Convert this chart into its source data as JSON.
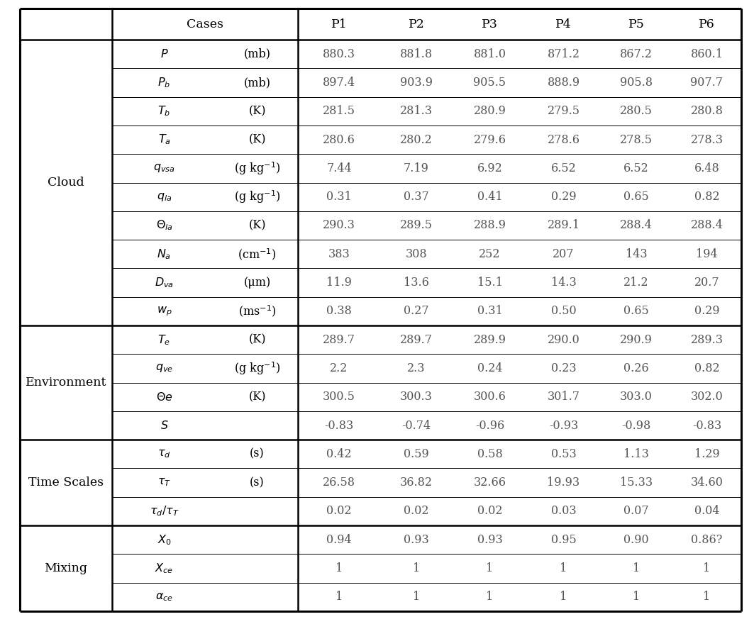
{
  "background_color": "#ffffff",
  "sections": [
    {
      "group_label": "Cloud",
      "rows": [
        {
          "param": "P",
          "param_tex": "$P$",
          "unit": "(mb)",
          "values": [
            "880.3",
            "881.8",
            "881.0",
            "871.2",
            "867.2",
            "860.1"
          ]
        },
        {
          "param": "P_b",
          "param_tex": "$P_b$",
          "unit": "(mb)",
          "values": [
            "897.4",
            "903.9",
            "905.5",
            "888.9",
            "905.8",
            "907.7"
          ]
        },
        {
          "param": "T_b",
          "param_tex": "$T_b$",
          "unit": "(K)",
          "values": [
            "281.5",
            "281.3",
            "280.9",
            "279.5",
            "280.5",
            "280.8"
          ]
        },
        {
          "param": "T_a",
          "param_tex": "$T_a$",
          "unit": "(K)",
          "values": [
            "280.6",
            "280.2",
            "279.6",
            "278.6",
            "278.5",
            "278.3"
          ]
        },
        {
          "param": "q_vsa",
          "param_tex": "$q_{vsa}$",
          "unit": "(g kg$^{-1}$)",
          "values": [
            "7.44",
            "7.19",
            "6.92",
            "6.52",
            "6.52",
            "6.48"
          ]
        },
        {
          "param": "q_la",
          "param_tex": "$q_{la}$",
          "unit": "(g kg$^{-1}$)",
          "values": [
            "0.31",
            "0.37",
            "0.41",
            "0.29",
            "0.65",
            "0.82"
          ]
        },
        {
          "param": "Theta_la",
          "param_tex": "$\\Theta_{la}$",
          "unit": "(K)",
          "values": [
            "290.3",
            "289.5",
            "288.9",
            "289.1",
            "288.4",
            "288.4"
          ]
        },
        {
          "param": "N_a",
          "param_tex": "$N_a$",
          "unit": "(cm$^{-1}$)",
          "values": [
            "383",
            "308",
            "252",
            "207",
            "143",
            "194"
          ]
        },
        {
          "param": "D_va",
          "param_tex": "$D_{va}$",
          "unit": "(μm)",
          "values": [
            "11.9",
            "13.6",
            "15.1",
            "14.3",
            "21.2",
            "20.7"
          ]
        },
        {
          "param": "w_p",
          "param_tex": "$w_p$",
          "unit": "(ms$^{-1}$)",
          "values": [
            "0.38",
            "0.27",
            "0.31",
            "0.50",
            "0.65",
            "0.29"
          ]
        }
      ]
    },
    {
      "group_label": "Environment",
      "rows": [
        {
          "param": "T_e",
          "param_tex": "$T_e$",
          "unit": "(K)",
          "values": [
            "289.7",
            "289.7",
            "289.9",
            "290.0",
            "290.9",
            "289.3"
          ]
        },
        {
          "param": "q_ve",
          "param_tex": "$q_{ve}$",
          "unit": "(g kg$^{-1}$)",
          "values": [
            "2.2",
            "2.3",
            "0.24",
            "0.23",
            "0.26",
            "0.82"
          ]
        },
        {
          "param": "Theta_e",
          "param_tex": "$\\Theta e$",
          "unit": "(K)",
          "values": [
            "300.5",
            "300.3",
            "300.6",
            "301.7",
            "303.0",
            "302.0"
          ]
        },
        {
          "param": "S",
          "param_tex": "$S$",
          "unit": "",
          "values": [
            "-0.83",
            "-0.74",
            "-0.96",
            "-0.93",
            "-0.98",
            "-0.83"
          ]
        }
      ]
    },
    {
      "group_label": "Time Scales",
      "rows": [
        {
          "param": "tau_d",
          "param_tex": "$\\tau_d$",
          "unit": "(s)",
          "values": [
            "0.42",
            "0.59",
            "0.58",
            "0.53",
            "1.13",
            "1.29"
          ]
        },
        {
          "param": "tau_T",
          "param_tex": "$\\tau_T$",
          "unit": "(s)",
          "values": [
            "26.58",
            "36.82",
            "32.66",
            "19.93",
            "15.33",
            "34.60"
          ]
        },
        {
          "param": "tau_d/tau_T",
          "param_tex": "$\\tau_d/\\tau_T$",
          "unit": "",
          "values": [
            "0.02",
            "0.02",
            "0.02",
            "0.03",
            "0.07",
            "0.04"
          ]
        }
      ]
    },
    {
      "group_label": "Mixing",
      "rows": [
        {
          "param": "X_0",
          "param_tex": "$X_0$",
          "unit": "",
          "values": [
            "0.94",
            "0.93",
            "0.93",
            "0.95",
            "0.90",
            "0.86?"
          ]
        },
        {
          "param": "X_ce",
          "param_tex": "$X_{ce}$",
          "unit": "",
          "values": [
            "1",
            "1",
            "1",
            "1",
            "1",
            "1"
          ]
        },
        {
          "param": "alpha_ce",
          "param_tex": "$\\alpha_{ce}$",
          "unit": "",
          "values": [
            "1",
            "1",
            "1",
            "1",
            "1",
            "1"
          ]
        }
      ]
    }
  ],
  "p_labels": [
    "P1",
    "P2",
    "P3",
    "P4",
    "P5",
    "P6"
  ],
  "text_color": "#000000",
  "data_color": "#555555",
  "font_size": 11.5,
  "header_font_size": 12.5,
  "group_font_size": 12.5
}
